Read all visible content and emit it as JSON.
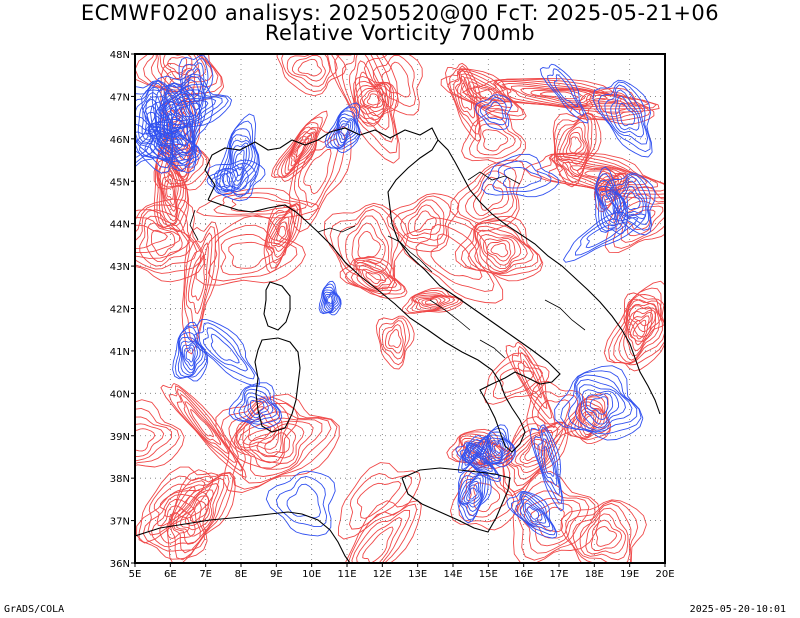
{
  "title": {
    "line1": "ECMWF0200 analisys: 20250520@00 FcT: 2025-05-21+06",
    "line2": "Relative Vorticity 700mb"
  },
  "map": {
    "lat_labels": [
      "48N",
      "47N",
      "46N",
      "45N",
      "44N",
      "43N",
      "42N",
      "41N",
      "40N",
      "39N",
      "38N",
      "37N",
      "36N"
    ],
    "lon_labels": [
      "5E",
      "6E",
      "7E",
      "8E",
      "9E",
      "10E",
      "11E",
      "12E",
      "13E",
      "14E",
      "15E",
      "16E",
      "17E",
      "18E",
      "19E",
      "20E"
    ],
    "extent": {
      "lon": [
        5,
        20
      ],
      "lat": [
        36,
        48
      ]
    },
    "colors": {
      "positive_vorticity": "#f04848",
      "negative_vorticity": "#3050f0",
      "coastline": "#000000",
      "grid": "#777777"
    },
    "grid": "dotted"
  },
  "footer": {
    "left": "GrADS/COLA",
    "right": "2025-05-20-10:01"
  }
}
